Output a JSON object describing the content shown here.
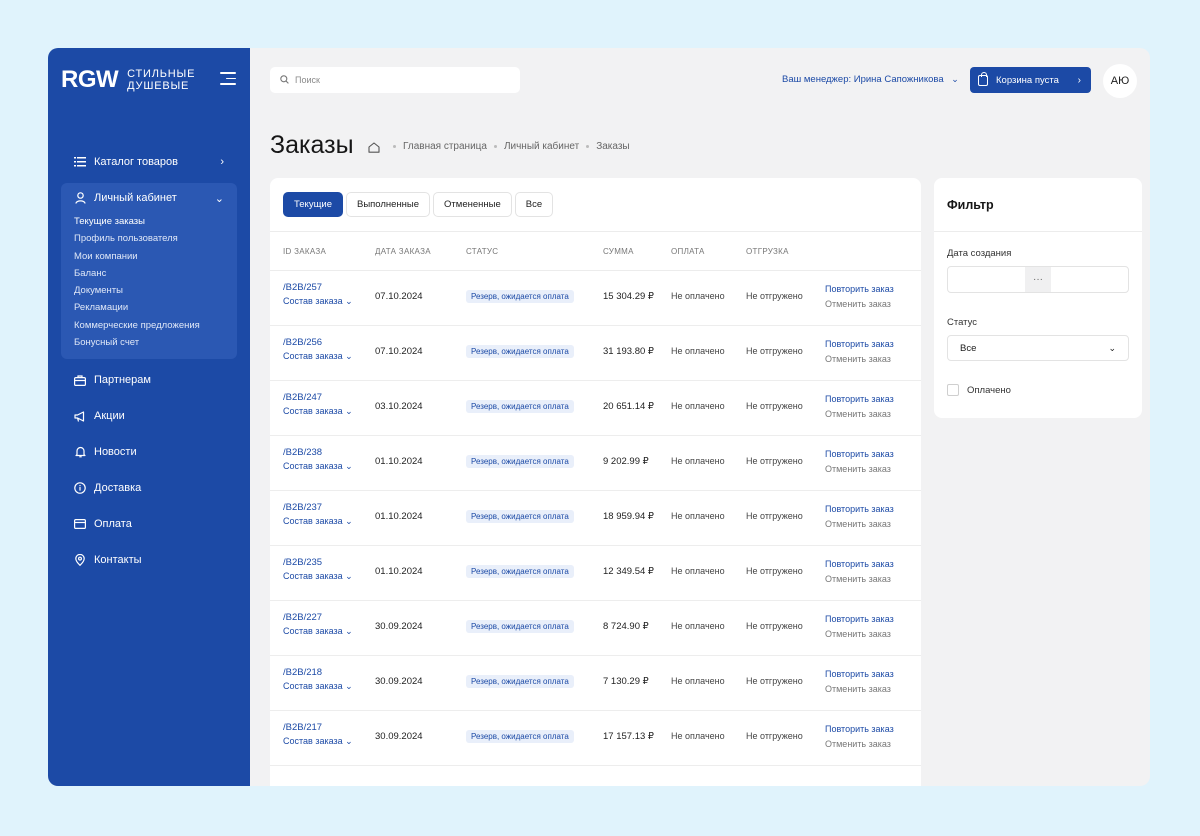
{
  "brand": {
    "mark": "RGW",
    "line1": "Стильные",
    "line2": "душевые"
  },
  "nav": {
    "catalog": "Каталог товаров",
    "cabinet": "Личный кабинет",
    "cabinet_items": [
      "Текущие заказы",
      "Профиль пользователя",
      "Мои компании",
      "Баланс",
      "Документы",
      "Рекламации",
      "Коммерческие предложения",
      "Бонусный счет"
    ],
    "partners": "Партнерам",
    "promo": "Акции",
    "news": "Новости",
    "delivery": "Доставка",
    "payment": "Оплата",
    "contacts": "Контакты"
  },
  "header": {
    "search_placeholder": "Поиск",
    "manager": "Ваш менеджер: Ирина Сапожникова",
    "cart": "Корзина пуста",
    "avatar": "АЮ"
  },
  "page": {
    "title": "Заказы",
    "breadcrumbs": [
      "Главная страница",
      "Личный кабинет",
      "Заказы"
    ]
  },
  "tabs": [
    "Текущие",
    "Выполненные",
    "Отмененные",
    "Все"
  ],
  "table": {
    "headers": {
      "id": "ID ЗАКАЗА",
      "date": "ДАТА ЗАКАЗА",
      "status": "СТАТУС",
      "sum": "СУММА",
      "payment": "ОПЛАТА",
      "shipment": "ОТГРУЗКА"
    },
    "composition_label": "Состав заказа",
    "repeat_label": "Повторить заказ",
    "cancel_label": "Отменить заказ",
    "rows": [
      {
        "id": "/B2B/257",
        "date": "07.10.2024",
        "status": "Резерв, ожидается оплата",
        "sum": "15 304.29 ₽",
        "payment": "Не оплачено",
        "shipment": "Не отгружено"
      },
      {
        "id": "/B2B/256",
        "date": "07.10.2024",
        "status": "Резерв, ожидается оплата",
        "sum": "31 193.80 ₽",
        "payment": "Не оплачено",
        "shipment": "Не отгружено"
      },
      {
        "id": "/B2B/247",
        "date": "03.10.2024",
        "status": "Резерв, ожидается оплата",
        "sum": "20 651.14 ₽",
        "payment": "Не оплачено",
        "shipment": "Не отгружено"
      },
      {
        "id": "/B2B/238",
        "date": "01.10.2024",
        "status": "Резерв, ожидается оплата",
        "sum": "9 202.99 ₽",
        "payment": "Не оплачено",
        "shipment": "Не отгружено"
      },
      {
        "id": "/B2B/237",
        "date": "01.10.2024",
        "status": "Резерв, ожидается оплата",
        "sum": "18 959.94 ₽",
        "payment": "Не оплачено",
        "shipment": "Не отгружено"
      },
      {
        "id": "/B2B/235",
        "date": "01.10.2024",
        "status": "Резерв, ожидается оплата",
        "sum": "12 349.54 ₽",
        "payment": "Не оплачено",
        "shipment": "Не отгружено"
      },
      {
        "id": "/B2B/227",
        "date": "30.09.2024",
        "status": "Резерв, ожидается оплата",
        "sum": "8 724.90 ₽",
        "payment": "Не оплачено",
        "shipment": "Не отгружено"
      },
      {
        "id": "/B2B/218",
        "date": "30.09.2024",
        "status": "Резерв, ожидается оплата",
        "sum": "7 130.29 ₽",
        "payment": "Не оплачено",
        "shipment": "Не отгружено"
      },
      {
        "id": "/B2B/217",
        "date": "30.09.2024",
        "status": "Резерв, ожидается оплата",
        "sum": "17 157.13 ₽",
        "payment": "Не оплачено",
        "shipment": "Не отгружено"
      }
    ]
  },
  "filter": {
    "title": "Фильтр",
    "created_label": "Дата создания",
    "range_separator": "···",
    "status_label": "Статус",
    "status_value": "Все",
    "paid_label": "Оплачено"
  },
  "colors": {
    "primary": "#1c4aa6",
    "background": "#e0f3fc",
    "panel": "#f2f2f3"
  }
}
